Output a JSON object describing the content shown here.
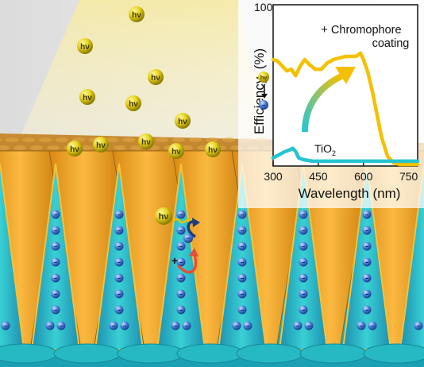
{
  "illustration": {
    "photon_label": "hν",
    "electron_symbol": "−",
    "hole_symbol": "+",
    "colors": {
      "light_beam": "#fbf1b0",
      "nanocone_gold": "#f0a62a",
      "nanocone_cyan": "#27c6cf",
      "base_teal": "#1fb4c0",
      "photon_yellow": "#e5d21c",
      "electron_blue": "#3b6fd0",
      "hole_red": "#e0503a"
    }
  },
  "inset_chart": {
    "chart_data": {
      "type": "line",
      "ylabel": "Efficiency  (%)",
      "xlabel": "Wavelength (nm)",
      "x_ticks": [
        "300",
        "450",
        "600",
        "750"
      ],
      "y_tick_top": "100",
      "xlim": [
        300,
        780
      ],
      "ylim": [
        0,
        100
      ],
      "series": [
        {
          "name": "+ Chromophore coating",
          "color": "#f5c000",
          "x": [
            300,
            315,
            330,
            345,
            360,
            375,
            390,
            405,
            420,
            440,
            460,
            480,
            500,
            520,
            540,
            560,
            575,
            590,
            600,
            615,
            630,
            645,
            660,
            680,
            700,
            720,
            740,
            760,
            780
          ],
          "y": [
            66,
            65,
            62,
            59,
            60,
            56,
            62,
            66,
            63,
            60,
            60,
            64,
            66,
            67,
            68,
            68,
            68,
            70,
            66,
            58,
            46,
            32,
            18,
            6,
            2,
            1,
            1,
            1,
            1
          ]
        },
        {
          "name": "TiO2",
          "color": "#24c4d0",
          "x": [
            300,
            320,
            340,
            355,
            365,
            375,
            385,
            400,
            430,
            470,
            520,
            560,
            600,
            640,
            680,
            720,
            760,
            780
          ],
          "y": [
            5,
            7,
            9,
            10,
            11,
            9,
            5,
            4,
            3,
            3,
            3,
            3,
            3,
            3,
            3,
            3,
            3,
            3
          ]
        }
      ],
      "annotations": [
        "+ Chromophore\ncoating",
        "TiO2"
      ]
    },
    "labels": {
      "coating_line1": "+ Chromophore",
      "coating_line2": "coating",
      "tio2_main": "TiO",
      "tio2_sub": "2"
    }
  }
}
